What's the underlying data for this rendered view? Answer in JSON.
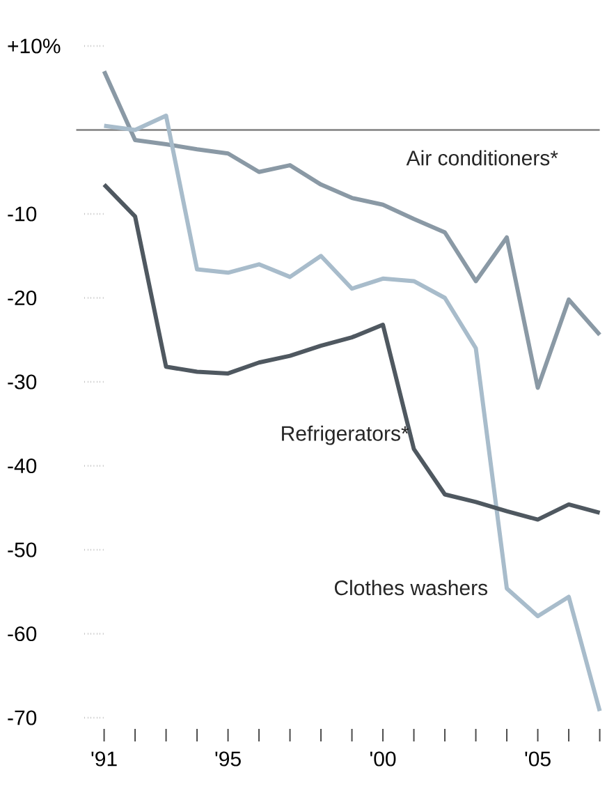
{
  "chart_data": {
    "type": "line",
    "x": [
      1991,
      1992,
      1993,
      1994,
      1995,
      1996,
      1997,
      1998,
      1999,
      2000,
      2001,
      2002,
      2003,
      2004,
      2005,
      2006,
      2007
    ],
    "series": [
      {
        "name": "Air conditioners*",
        "color": "#8a99a5",
        "values": [
          7,
          -1.2,
          -1.7,
          -2.3,
          -2.8,
          -5,
          -4.2,
          -6.5,
          -8.1,
          -8.9,
          -10.6,
          -12.2,
          -18,
          -12.8,
          -30.7,
          -20.2,
          -24.4
        ]
      },
      {
        "name": "Clothes washers",
        "color": "#a8bccb",
        "values": [
          0.5,
          0,
          1.7,
          -16.6,
          -17,
          -16,
          -17.5,
          -15,
          -18.9,
          -17.7,
          -18,
          -20,
          -26,
          -54.6,
          -57.9,
          -55.6,
          -69.2
        ]
      },
      {
        "name": "Refrigerators*",
        "color": "#4f5860",
        "values": [
          -6.5,
          -10.3,
          -28.2,
          -28.8,
          -29,
          -27.7,
          -26.9,
          -25.7,
          -24.7,
          -23.2,
          -38,
          -43.4,
          -44.3,
          -45.4,
          -46.4,
          -44.6,
          -45.6
        ]
      }
    ],
    "xlim": [
      1991,
      2007
    ],
    "ylim": [
      -70,
      10
    ],
    "xticks": [
      {
        "value": 1991,
        "label": "'91"
      },
      {
        "value": 1992,
        "label": null
      },
      {
        "value": 1993,
        "label": null
      },
      {
        "value": 1994,
        "label": null
      },
      {
        "value": 1995,
        "label": "'95"
      },
      {
        "value": 1996,
        "label": null
      },
      {
        "value": 1997,
        "label": null
      },
      {
        "value": 1998,
        "label": null
      },
      {
        "value": 1999,
        "label": null
      },
      {
        "value": 2000,
        "label": "'00"
      },
      {
        "value": 2001,
        "label": null
      },
      {
        "value": 2002,
        "label": null
      },
      {
        "value": 2003,
        "label": null
      },
      {
        "value": 2004,
        "label": null
      },
      {
        "value": 2005,
        "label": "'05"
      },
      {
        "value": 2006,
        "label": null
      },
      {
        "value": 2007,
        "label": null
      }
    ],
    "yticks": [
      {
        "value": 10,
        "label": "+10%"
      },
      -10,
      -20,
      -30,
      -40,
      -50,
      -60,
      -70
    ],
    "ref_lines": [
      {
        "axis": "y",
        "value": 0,
        "color": "#808080"
      }
    ],
    "line_style": "solid",
    "marker": "none",
    "grid": false,
    "legend": false
  }
}
